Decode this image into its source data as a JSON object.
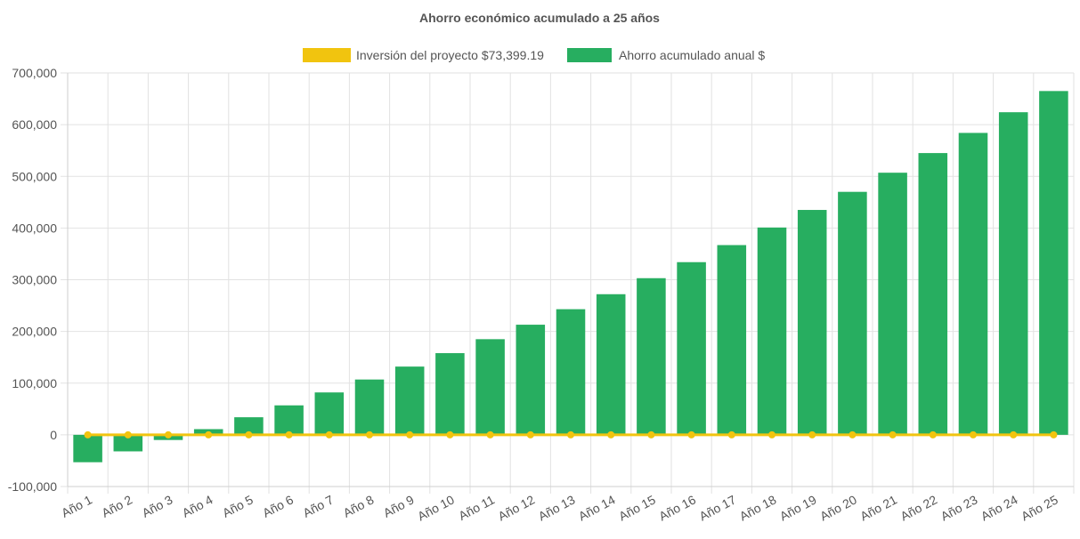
{
  "chart_data": {
    "type": "bar",
    "title": "Ahorro económico acumulado a 25 años",
    "legend_position": "top",
    "grid": true,
    "categories": [
      "Año 1",
      "Año 2",
      "Año 3",
      "Año 4",
      "Año 5",
      "Año 6",
      "Año 7",
      "Año 8",
      "Año 9",
      "Año 10",
      "Año 11",
      "Año 12",
      "Año 13",
      "Año 14",
      "Año 15",
      "Año 16",
      "Año 17",
      "Año 18",
      "Año 19",
      "Año 20",
      "Año 21",
      "Año 22",
      "Año 23",
      "Año 24",
      "Año 25"
    ],
    "ylim": [
      -100000,
      700000
    ],
    "y_ticks": [
      700000,
      600000,
      500000,
      400000,
      300000,
      200000,
      100000,
      0,
      -100000
    ],
    "y_tick_labels": [
      "700,000",
      "600,000",
      "500,000",
      "400,000",
      "300,000",
      "200,000",
      "100,000",
      "0",
      "-100,000"
    ],
    "series": [
      {
        "name": "Inversión del proyecto $73,399.19",
        "type": "line",
        "color": "#f1c40f",
        "values": [
          0,
          0,
          0,
          0,
          0,
          0,
          0,
          0,
          0,
          0,
          0,
          0,
          0,
          0,
          0,
          0,
          0,
          0,
          0,
          0,
          0,
          0,
          0,
          0,
          0
        ]
      },
      {
        "name": "Ahorro acumulado anual $",
        "type": "bar",
        "color": "#27ae60",
        "values": [
          -53000,
          -32000,
          -10000,
          11000,
          34000,
          57000,
          82000,
          107000,
          132000,
          158000,
          185000,
          213000,
          243000,
          272000,
          303000,
          334000,
          367000,
          401000,
          435000,
          470000,
          507000,
          545000,
          584000,
          624000,
          665000
        ]
      }
    ]
  }
}
